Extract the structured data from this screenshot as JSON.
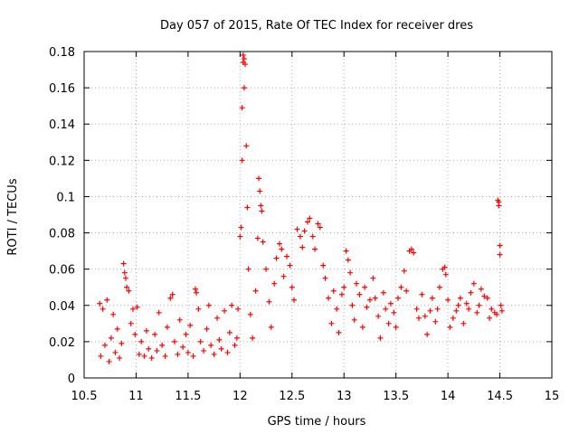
{
  "chart_data": {
    "type": "scatter",
    "title": "Day 057 of 2015, Rate Of TEC Index for receiver dres",
    "xlabel": "GPS time / hours",
    "ylabel": "ROTI / TECUs",
    "xlim": [
      10.5,
      15
    ],
    "ylim": [
      0,
      0.18
    ],
    "xticks": [
      10.5,
      11,
      11.5,
      12,
      12.5,
      13,
      13.5,
      14,
      14.5,
      15
    ],
    "xtick_labels": [
      "10.5",
      "11",
      "11.5",
      "12",
      "12.5",
      "13",
      "13.5",
      "14",
      "14.5",
      "15"
    ],
    "yticks": [
      0,
      0.02,
      0.04,
      0.06,
      0.08,
      0.1,
      0.12,
      0.14,
      0.16,
      0.18
    ],
    "ytick_labels": [
      "0",
      "0.02",
      "0.04",
      "0.06",
      "0.08",
      "0.1",
      "0.12",
      "0.14",
      "0.16",
      "0.18"
    ],
    "grid": true,
    "marker": "+",
    "marker_color": "#ff0000",
    "series": [
      {
        "name": "ROTI",
        "points": [
          [
            10.65,
            0.041
          ],
          [
            10.66,
            0.012
          ],
          [
            10.68,
            0.038
          ],
          [
            10.7,
            0.018
          ],
          [
            10.72,
            0.043
          ],
          [
            10.74,
            0.009
          ],
          [
            10.76,
            0.022
          ],
          [
            10.78,
            0.035
          ],
          [
            10.8,
            0.014
          ],
          [
            10.82,
            0.027
          ],
          [
            10.84,
            0.011
          ],
          [
            10.86,
            0.019
          ],
          [
            10.88,
            0.063
          ],
          [
            10.89,
            0.058
          ],
          [
            10.9,
            0.055
          ],
          [
            10.91,
            0.05
          ],
          [
            10.93,
            0.048
          ],
          [
            10.95,
            0.03
          ],
          [
            10.97,
            0.038
          ],
          [
            10.99,
            0.024
          ],
          [
            11.01,
            0.039
          ],
          [
            11.03,
            0.013
          ],
          [
            11.05,
            0.02
          ],
          [
            11.08,
            0.012
          ],
          [
            11.1,
            0.026
          ],
          [
            11.12,
            0.016
          ],
          [
            11.15,
            0.011
          ],
          [
            11.18,
            0.024
          ],
          [
            11.2,
            0.015
          ],
          [
            11.22,
            0.036
          ],
          [
            11.25,
            0.018
          ],
          [
            11.28,
            0.012
          ],
          [
            11.3,
            0.028
          ],
          [
            11.33,
            0.044
          ],
          [
            11.35,
            0.046
          ],
          [
            11.37,
            0.02
          ],
          [
            11.4,
            0.013
          ],
          [
            11.42,
            0.032
          ],
          [
            11.45,
            0.017
          ],
          [
            11.48,
            0.024
          ],
          [
            11.5,
            0.014
          ],
          [
            11.52,
            0.029
          ],
          [
            11.55,
            0.012
          ],
          [
            11.57,
            0.049
          ],
          [
            11.58,
            0.047
          ],
          [
            11.6,
            0.038
          ],
          [
            11.62,
            0.02
          ],
          [
            11.65,
            0.015
          ],
          [
            11.68,
            0.027
          ],
          [
            11.7,
            0.04
          ],
          [
            11.72,
            0.018
          ],
          [
            11.75,
            0.013
          ],
          [
            11.78,
            0.033
          ],
          [
            11.8,
            0.021
          ],
          [
            11.82,
            0.016
          ],
          [
            11.85,
            0.037
          ],
          [
            11.88,
            0.014
          ],
          [
            11.9,
            0.025
          ],
          [
            11.92,
            0.04
          ],
          [
            11.95,
            0.018
          ],
          [
            11.97,
            0.022
          ],
          [
            11.98,
            0.038
          ],
          [
            12.0,
            0.078
          ],
          [
            12.01,
            0.083
          ],
          [
            12.02,
            0.12
          ],
          [
            12.02,
            0.149
          ],
          [
            12.03,
            0.178
          ],
          [
            12.03,
            0.174
          ],
          [
            12.04,
            0.176
          ],
          [
            12.04,
            0.16
          ],
          [
            12.05,
            0.173
          ],
          [
            12.06,
            0.128
          ],
          [
            12.07,
            0.094
          ],
          [
            12.08,
            0.06
          ],
          [
            12.1,
            0.035
          ],
          [
            12.12,
            0.022
          ],
          [
            12.15,
            0.048
          ],
          [
            12.17,
            0.077
          ],
          [
            12.18,
            0.11
          ],
          [
            12.19,
            0.103
          ],
          [
            12.2,
            0.095
          ],
          [
            12.21,
            0.092
          ],
          [
            12.22,
            0.075
          ],
          [
            12.25,
            0.06
          ],
          [
            12.28,
            0.042
          ],
          [
            12.3,
            0.028
          ],
          [
            12.33,
            0.052
          ],
          [
            12.35,
            0.066
          ],
          [
            12.38,
            0.074
          ],
          [
            12.4,
            0.071
          ],
          [
            12.42,
            0.056
          ],
          [
            12.45,
            0.067
          ],
          [
            12.48,
            0.062
          ],
          [
            12.5,
            0.05
          ],
          [
            12.52,
            0.043
          ],
          [
            12.55,
            0.082
          ],
          [
            12.58,
            0.078
          ],
          [
            12.6,
            0.072
          ],
          [
            12.62,
            0.081
          ],
          [
            12.65,
            0.086
          ],
          [
            12.67,
            0.088
          ],
          [
            12.7,
            0.078
          ],
          [
            12.72,
            0.071
          ],
          [
            12.75,
            0.085
          ],
          [
            12.77,
            0.083
          ],
          [
            12.8,
            0.062
          ],
          [
            12.82,
            0.055
          ],
          [
            12.85,
            0.044
          ],
          [
            12.88,
            0.03
          ],
          [
            12.9,
            0.048
          ],
          [
            12.93,
            0.038
          ],
          [
            12.95,
            0.025
          ],
          [
            12.98,
            0.046
          ],
          [
            13.0,
            0.05
          ],
          [
            13.02,
            0.07
          ],
          [
            13.04,
            0.065
          ],
          [
            13.06,
            0.058
          ],
          [
            13.08,
            0.04
          ],
          [
            13.1,
            0.032
          ],
          [
            13.12,
            0.052
          ],
          [
            13.15,
            0.046
          ],
          [
            13.18,
            0.028
          ],
          [
            13.2,
            0.05
          ],
          [
            13.22,
            0.039
          ],
          [
            13.25,
            0.043
          ],
          [
            13.28,
            0.055
          ],
          [
            13.3,
            0.044
          ],
          [
            13.33,
            0.034
          ],
          [
            13.35,
            0.022
          ],
          [
            13.38,
            0.047
          ],
          [
            13.4,
            0.038
          ],
          [
            13.43,
            0.03
          ],
          [
            13.45,
            0.041
          ],
          [
            13.48,
            0.036
          ],
          [
            13.5,
            0.028
          ],
          [
            13.52,
            0.044
          ],
          [
            13.55,
            0.05
          ],
          [
            13.58,
            0.059
          ],
          [
            13.6,
            0.048
          ],
          [
            13.63,
            0.07
          ],
          [
            13.65,
            0.071
          ],
          [
            13.67,
            0.069
          ],
          [
            13.7,
            0.038
          ],
          [
            13.72,
            0.033
          ],
          [
            13.75,
            0.046
          ],
          [
            13.78,
            0.034
          ],
          [
            13.8,
            0.024
          ],
          [
            13.83,
            0.037
          ],
          [
            13.85,
            0.044
          ],
          [
            13.88,
            0.031
          ],
          [
            13.9,
            0.038
          ],
          [
            13.92,
            0.05
          ],
          [
            13.95,
            0.06
          ],
          [
            13.97,
            0.061
          ],
          [
            13.98,
            0.057
          ],
          [
            14.0,
            0.043
          ],
          [
            14.02,
            0.028
          ],
          [
            14.05,
            0.033
          ],
          [
            14.08,
            0.037
          ],
          [
            14.1,
            0.04
          ],
          [
            14.12,
            0.044
          ],
          [
            14.15,
            0.03
          ],
          [
            14.18,
            0.041
          ],
          [
            14.2,
            0.038
          ],
          [
            14.22,
            0.047
          ],
          [
            14.25,
            0.052
          ],
          [
            14.28,
            0.036
          ],
          [
            14.3,
            0.04
          ],
          [
            14.32,
            0.049
          ],
          [
            14.35,
            0.045
          ],
          [
            14.38,
            0.044
          ],
          [
            14.4,
            0.033
          ],
          [
            14.42,
            0.038
          ],
          [
            14.45,
            0.036
          ],
          [
            14.47,
            0.035
          ],
          [
            14.48,
            0.098
          ],
          [
            14.49,
            0.097
          ],
          [
            14.49,
            0.095
          ],
          [
            14.5,
            0.073
          ],
          [
            14.5,
            0.068
          ],
          [
            14.51,
            0.04
          ],
          [
            14.52,
            0.037
          ]
        ]
      }
    ]
  }
}
